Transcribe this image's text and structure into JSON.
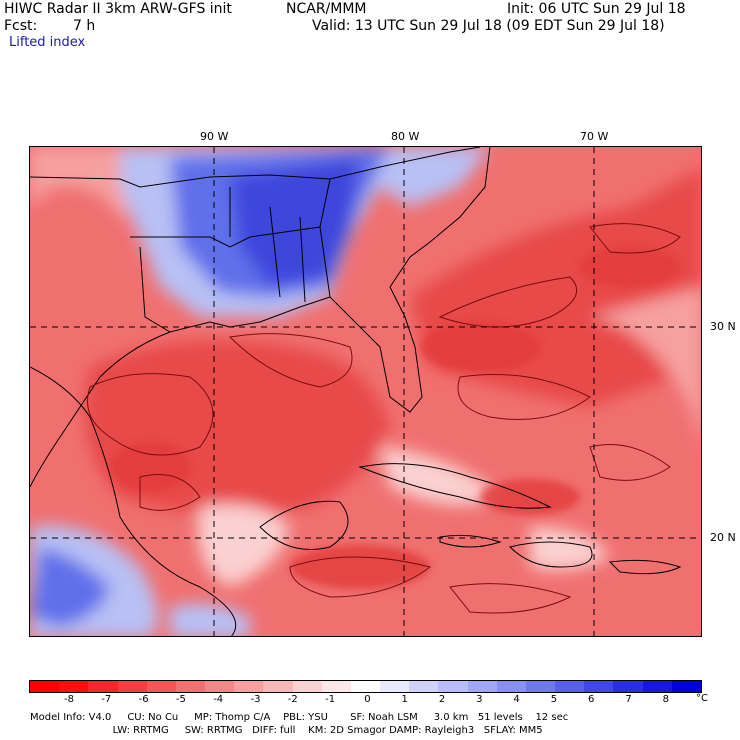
{
  "header": {
    "title": "HIWC Radar II 3km ARW-GFS init",
    "agency": "NCAR/MMM",
    "init": "Init: 06 UTC Sun 29 Jul 18",
    "fcst_label": "Fcst:",
    "fcst_value": "7 h",
    "valid": "Valid: 13 UTC Sun 29 Jul 18 (09 EDT Sun 29 Jul 18)",
    "field": "Lifted index"
  },
  "map": {
    "lon_labels": [
      "90 W",
      "80 W",
      "70 W"
    ],
    "lat_labels": [
      "30 N",
      "20 N"
    ],
    "colors": {
      "ocean_red": "#f07070",
      "deep_red": "#e84848",
      "light_red": "#f6a0a0",
      "pale": "#fbd0d0",
      "light_blue": "#b8c0f4",
      "blue": "#6070ea",
      "deep_blue": "#3c46dc",
      "contour": "#7a0e0e"
    }
  },
  "colorbar": {
    "ticks": [
      "-8",
      "-7",
      "-6",
      "-5",
      "-4",
      "-3",
      "-2",
      "-1",
      "0",
      "1",
      "2",
      "3",
      "4",
      "5",
      "6",
      "7",
      "8"
    ],
    "unit": "°C",
    "colors": [
      "#ff0000",
      "#f81010",
      "#f42828",
      "#f24040",
      "#f05858",
      "#f27070",
      "#f48888",
      "#f6a0a0",
      "#f8b8b8",
      "#fad0d0",
      "#fce8e8",
      "#ffffff",
      "#e8eafe",
      "#cfd3fc",
      "#b8befa",
      "#a0a8f6",
      "#8890f2",
      "#7078ee",
      "#5860ea",
      "#4048e6",
      "#2830e0",
      "#1818dc",
      "#0000d8"
    ]
  },
  "footer": {
    "line1": "Model Info: V4.0     CU: No Cu     MP: Thomp C/A    PBL: YSU       SF: Noah LSM     3.0 km   51 levels    12 sec",
    "line2": "                          LW: RRTMG     SW: RRTMG   DIFF: full    KM: 2D Smagor DAMP: Rayleigh3   SFLAY: MM5"
  }
}
